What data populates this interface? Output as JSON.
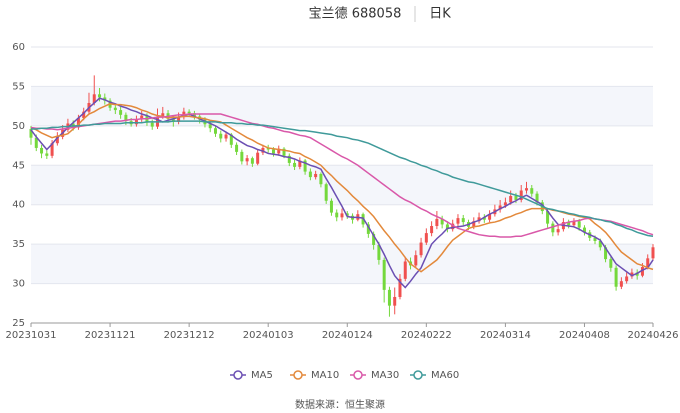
{
  "chart_data": {
    "type": "candlestick",
    "title": "宝兰德 688058",
    "subtitle": "日K",
    "source": "数据来源：恒生聚源",
    "categories": [
      "20231031",
      null,
      null,
      null,
      null,
      null,
      null,
      null,
      null,
      null,
      null,
      null,
      null,
      null,
      null,
      "20231121",
      null,
      null,
      null,
      null,
      null,
      null,
      null,
      null,
      null,
      null,
      null,
      null,
      null,
      null,
      "20231212",
      null,
      null,
      null,
      null,
      null,
      null,
      null,
      null,
      null,
      null,
      null,
      null,
      null,
      null,
      "20240103",
      null,
      null,
      null,
      null,
      null,
      null,
      null,
      null,
      null,
      null,
      null,
      null,
      null,
      null,
      "20240124",
      null,
      null,
      null,
      null,
      null,
      null,
      null,
      null,
      null,
      null,
      null,
      null,
      null,
      null,
      "20240222",
      null,
      null,
      null,
      null,
      null,
      null,
      null,
      null,
      null,
      null,
      null,
      null,
      null,
      null,
      "20240314",
      null,
      null,
      null,
      null,
      null,
      null,
      null,
      null,
      null,
      null,
      null,
      null,
      null,
      null,
      "20240408",
      null,
      null,
      null,
      null,
      null,
      null,
      null,
      null,
      null,
      null,
      null,
      null,
      "20240426"
    ],
    "open": [
      49.6,
      48.5,
      47.2,
      46.5,
      46.2,
      47.8,
      48.6,
      49.5,
      50.3,
      49.8,
      51.0,
      51.8,
      52.9,
      54.0,
      53.6,
      53.2,
      52.3,
      52.0,
      51.4,
      50.6,
      50.2,
      50.8,
      51.3,
      50.4,
      49.9,
      51.2,
      51.6,
      50.9,
      50.5,
      51.1,
      51.8,
      51.6,
      51.2,
      50.8,
      50.2,
      49.7,
      49.0,
      48.4,
      48.9,
      47.6,
      46.7,
      45.5,
      45.9,
      45.2,
      46.6,
      47.2,
      47.0,
      46.5,
      47.1,
      46.2,
      45.3,
      44.8,
      45.6,
      44.2,
      43.5,
      43.9,
      42.6,
      40.5,
      39.0,
      38.4,
      38.9,
      38.6,
      38.1,
      38.8,
      37.5,
      36.3,
      34.9,
      33.0,
      29.2,
      27.2,
      28.3,
      30.6,
      32.8,
      32.3,
      33.6,
      35.2,
      36.4,
      37.3,
      38.2,
      37.5,
      36.9,
      37.6,
      38.3,
      37.8,
      37.2,
      37.9,
      38.4,
      38.1,
      38.8,
      39.4,
      39.9,
      40.3,
      41.1,
      40.6,
      41.8,
      42.1,
      41.4,
      40.3,
      39.2,
      37.6,
      36.5,
      36.9,
      37.8,
      37.4,
      37.9,
      37.1,
      36.5,
      35.8,
      35.4,
      34.6,
      33.1,
      32.0,
      29.6,
      30.3,
      30.9,
      31.4,
      31.0,
      32.1,
      33.2
    ],
    "high": [
      50.0,
      48.9,
      47.6,
      46.9,
      48.2,
      49.2,
      50.1,
      50.9,
      50.7,
      51.4,
      52.3,
      54.2,
      56.4,
      54.8,
      54.1,
      53.5,
      52.6,
      52.4,
      51.7,
      51.0,
      51.3,
      51.9,
      51.6,
      50.8,
      52.2,
      52.4,
      52.0,
      51.3,
      51.7,
      52.3,
      52.1,
      51.9,
      51.5,
      51.1,
      50.6,
      50.0,
      49.4,
      49.3,
      49.1,
      47.9,
      47.0,
      46.3,
      46.1,
      47.0,
      47.6,
      47.6,
      47.3,
      47.5,
      47.3,
      46.5,
      45.7,
      46.0,
      45.8,
      44.6,
      44.3,
      44.1,
      42.8,
      40.8,
      39.4,
      39.5,
      39.2,
      38.9,
      39.3,
      39.0,
      37.8,
      36.6,
      35.3,
      33.3,
      29.6,
      29.5,
      31.2,
      33.4,
      33.3,
      34.2,
      35.8,
      37.0,
      37.9,
      39.2,
      38.6,
      37.9,
      38.1,
      38.8,
      38.7,
      38.1,
      38.4,
      39.0,
      38.8,
      39.3,
      40.0,
      40.6,
      40.9,
      41.8,
      41.5,
      42.5,
      42.9,
      42.5,
      41.7,
      40.6,
      39.5,
      37.9,
      37.4,
      38.3,
      38.1,
      38.3,
      38.2,
      37.4,
      36.8,
      36.1,
      35.7,
      34.9,
      33.4,
      32.3,
      30.8,
      31.4,
      31.9,
      31.8,
      32.6,
      33.7,
      35.0
    ],
    "low": [
      47.6,
      46.8,
      45.9,
      45.8,
      45.9,
      47.5,
      48.3,
      49.2,
      49.4,
      49.5,
      50.7,
      51.5,
      52.6,
      53.1,
      52.7,
      51.9,
      51.5,
      50.9,
      50.1,
      49.9,
      49.9,
      50.5,
      50.0,
      49.5,
      49.6,
      50.9,
      50.4,
      49.9,
      50.2,
      50.8,
      51.2,
      50.8,
      50.3,
      49.8,
      49.2,
      48.6,
      47.9,
      48.0,
      47.2,
      46.3,
      45.1,
      45.0,
      44.8,
      45.0,
      46.3,
      46.6,
      46.1,
      46.2,
      45.9,
      44.9,
      44.4,
      44.5,
      43.8,
      43.1,
      43.2,
      42.2,
      40.1,
      38.6,
      37.9,
      38.0,
      38.2,
      37.6,
      37.9,
      37.1,
      35.8,
      34.3,
      32.4,
      27.6,
      25.8,
      26.1,
      28.0,
      30.3,
      31.8,
      32.0,
      33.3,
      34.9,
      36.0,
      36.9,
      37.0,
      36.5,
      36.6,
      37.3,
      37.4,
      36.8,
      36.9,
      37.6,
      37.7,
      37.8,
      38.5,
      39.0,
      39.6,
      40.0,
      40.2,
      40.3,
      41.4,
      41.0,
      39.9,
      38.8,
      37.1,
      36.0,
      36.1,
      36.6,
      37.0,
      37.1,
      36.7,
      36.1,
      35.4,
      35.0,
      34.2,
      32.7,
      31.5,
      29.1,
      29.3,
      30.0,
      30.6,
      30.5,
      30.8,
      31.8,
      32.9
    ],
    "close": [
      48.5,
      47.2,
      46.5,
      46.2,
      47.8,
      48.6,
      49.5,
      50.3,
      49.8,
      51.0,
      51.8,
      52.9,
      54.0,
      53.6,
      53.2,
      52.3,
      52.0,
      51.4,
      50.6,
      50.2,
      50.8,
      51.3,
      50.4,
      49.9,
      51.2,
      51.6,
      50.9,
      50.5,
      51.1,
      51.8,
      51.6,
      51.2,
      50.8,
      50.2,
      49.7,
      49.0,
      48.4,
      48.9,
      47.6,
      46.7,
      45.5,
      45.9,
      45.2,
      46.6,
      47.2,
      47.0,
      46.5,
      47.1,
      46.2,
      45.3,
      44.8,
      45.6,
      44.2,
      43.5,
      43.9,
      42.6,
      40.5,
      39.0,
      38.4,
      38.9,
      38.6,
      38.1,
      38.8,
      37.5,
      36.3,
      34.9,
      33.0,
      29.2,
      27.2,
      28.3,
      30.6,
      32.8,
      32.3,
      33.6,
      35.2,
      36.4,
      37.3,
      38.2,
      37.5,
      36.9,
      37.6,
      38.3,
      37.8,
      37.2,
      37.9,
      38.4,
      38.1,
      38.8,
      39.4,
      39.9,
      40.3,
      41.1,
      40.6,
      41.8,
      42.1,
      41.4,
      40.3,
      39.2,
      37.6,
      36.5,
      36.9,
      37.8,
      37.4,
      37.9,
      37.1,
      36.5,
      35.8,
      35.4,
      34.6,
      33.1,
      32.0,
      29.6,
      30.3,
      30.9,
      31.4,
      31.0,
      32.1,
      33.2,
      34.6
    ],
    "up_color": "#f0504f",
    "down_color": "#74d83c",
    "series": [
      {
        "name": "MA5",
        "color": "#6b4fb3",
        "values": [
          49.5,
          48.6,
          47.8,
          47.0,
          47.7,
          48.5,
          49.1,
          49.8,
          50.4,
          51.0,
          51.6,
          52.3,
          52.9,
          53.5,
          53.3,
          53.0,
          52.8,
          52.5,
          52.3,
          52.0,
          51.8,
          51.5,
          51.3,
          51.0,
          50.8,
          50.5,
          50.7,
          50.9,
          51.1,
          51.3,
          51.5,
          51.2,
          50.9,
          50.6,
          50.3,
          50.0,
          49.6,
          49.2,
          48.8,
          48.3,
          47.9,
          47.5,
          47.3,
          47.0,
          46.8,
          46.5,
          46.4,
          46.3,
          46.1,
          46.0,
          45.8,
          45.5,
          45.3,
          45.0,
          44.8,
          44.5,
          43.3,
          42.2,
          41.0,
          39.8,
          38.5,
          38.4,
          38.4,
          38.3,
          37.2,
          36.1,
          35.0,
          33.7,
          32.3,
          31.0,
          30.2,
          29.5,
          30.3,
          31.2,
          32.0,
          33.5,
          35.0,
          35.7,
          36.3,
          37.0,
          37.1,
          37.2,
          37.3,
          37.5,
          37.8,
          38.0,
          38.4,
          38.8,
          39.1,
          39.5,
          39.8,
          40.2,
          40.5,
          40.9,
          41.2,
          40.8,
          40.4,
          40.0,
          39.2,
          38.3,
          37.5,
          37.4,
          37.3,
          37.2,
          36.9,
          36.5,
          36.2,
          35.9,
          35.5,
          34.5,
          33.5,
          32.5,
          32.0,
          31.5,
          31.0,
          31.3,
          31.7,
          32.0,
          33.0
        ]
      },
      {
        "name": "MA10",
        "color": "#e3893b",
        "values": [
          49.8,
          49.5,
          49.1,
          48.8,
          48.5,
          48.7,
          48.8,
          49.0,
          49.6,
          50.2,
          50.9,
          51.5,
          51.8,
          52.2,
          52.5,
          52.8,
          52.7,
          52.7,
          52.6,
          52.5,
          52.3,
          52.0,
          51.8,
          51.5,
          51.3,
          51.2,
          51.0,
          51.1,
          51.1,
          51.2,
          51.2,
          51.1,
          51.0,
          50.9,
          50.7,
          50.6,
          50.5,
          50.1,
          49.7,
          49.3,
          48.9,
          48.5,
          48.2,
          47.8,
          47.5,
          47.2,
          47.1,
          47.0,
          46.9,
          46.8,
          46.6,
          46.5,
          46.1,
          45.8,
          45.4,
          45.0,
          44.3,
          43.7,
          43.0,
          42.4,
          41.8,
          41.1,
          40.5,
          39.8,
          39.2,
          38.5,
          37.6,
          36.7,
          35.9,
          35.0,
          34.2,
          33.3,
          32.5,
          32.0,
          31.5,
          32.0,
          32.5,
          33.0,
          33.8,
          34.7,
          35.5,
          36.0,
          36.5,
          37.0,
          37.2,
          37.3,
          37.5,
          37.7,
          37.8,
          38.0,
          38.3,
          38.5,
          38.8,
          39.0,
          39.3,
          39.5,
          39.5,
          39.5,
          39.5,
          39.3,
          39.2,
          39.0,
          38.8,
          38.7,
          38.5,
          38.4,
          38.2,
          37.6,
          37.1,
          36.5,
          35.7,
          34.8,
          34.0,
          33.5,
          33.0,
          32.5,
          32.3,
          32.0,
          31.8
        ]
      },
      {
        "name": "MA30",
        "color": "#d958a9",
        "values": [
          49.8,
          49.7,
          49.7,
          49.6,
          49.6,
          49.5,
          49.6,
          49.7,
          49.8,
          49.9,
          50.0,
          50.1,
          50.2,
          50.3,
          50.4,
          50.5,
          50.6,
          50.6,
          50.7,
          50.8,
          50.8,
          50.9,
          50.9,
          51.0,
          51.1,
          51.1,
          51.2,
          51.3,
          51.4,
          51.4,
          51.5,
          51.5,
          51.5,
          51.5,
          51.5,
          51.5,
          51.5,
          51.3,
          51.1,
          50.9,
          50.7,
          50.5,
          50.3,
          50.2,
          50.0,
          49.8,
          49.7,
          49.5,
          49.3,
          49.2,
          49.0,
          48.8,
          48.7,
          48.5,
          48.1,
          47.7,
          47.3,
          46.9,
          46.5,
          46.1,
          45.8,
          45.4,
          45.0,
          44.5,
          44.0,
          43.5,
          43.0,
          42.5,
          42.0,
          41.5,
          41.0,
          40.6,
          40.3,
          39.9,
          39.5,
          39.2,
          38.8,
          38.5,
          38.2,
          37.8,
          37.4,
          37.0,
          36.8,
          36.6,
          36.4,
          36.2,
          36.1,
          36.0,
          36.0,
          35.9,
          35.9,
          35.9,
          36.0,
          36.0,
          36.2,
          36.4,
          36.6,
          36.8,
          37.0,
          37.2,
          37.4,
          37.6,
          37.8,
          37.9,
          38.0,
          38.2,
          38.3,
          38.2,
          38.1,
          38.0,
          37.9,
          37.7,
          37.5,
          37.3,
          37.1,
          36.9,
          36.7,
          36.4,
          36.2
        ]
      },
      {
        "name": "MA60",
        "color": "#3f9a9a",
        "values": [
          49.6,
          49.6,
          49.7,
          49.7,
          49.8,
          49.8,
          49.9,
          49.9,
          50.0,
          50.0,
          50.1,
          50.1,
          50.2,
          50.2,
          50.3,
          50.3,
          50.3,
          50.3,
          50.4,
          50.4,
          50.4,
          50.4,
          50.5,
          50.5,
          50.5,
          50.5,
          50.5,
          50.6,
          50.6,
          50.6,
          50.6,
          50.6,
          50.6,
          50.5,
          50.5,
          50.5,
          50.4,
          50.4,
          50.4,
          50.3,
          50.3,
          50.2,
          50.2,
          50.1,
          50.1,
          50.0,
          49.9,
          49.8,
          49.7,
          49.6,
          49.5,
          49.4,
          49.4,
          49.3,
          49.2,
          49.1,
          49.0,
          48.9,
          48.7,
          48.6,
          48.5,
          48.3,
          48.2,
          48.0,
          47.8,
          47.5,
          47.2,
          46.9,
          46.6,
          46.3,
          46.0,
          45.8,
          45.5,
          45.3,
          45.0,
          44.8,
          44.5,
          44.3,
          44.0,
          43.8,
          43.5,
          43.3,
          43.1,
          42.9,
          42.8,
          42.6,
          42.4,
          42.2,
          42.0,
          41.8,
          41.6,
          41.4,
          41.2,
          41.0,
          40.7,
          40.4,
          40.1,
          39.8,
          39.5,
          39.4,
          39.2,
          39.1,
          38.9,
          38.8,
          38.6,
          38.5,
          38.4,
          38.2,
          38.1,
          37.9,
          37.8,
          37.5,
          37.3,
          37.0,
          36.8,
          36.5,
          36.3,
          36.1,
          36.0
        ]
      }
    ],
    "ylim": [
      25,
      60
    ],
    "yticks": [
      25,
      30,
      35,
      40,
      45,
      50,
      55,
      60
    ],
    "grid": true
  }
}
